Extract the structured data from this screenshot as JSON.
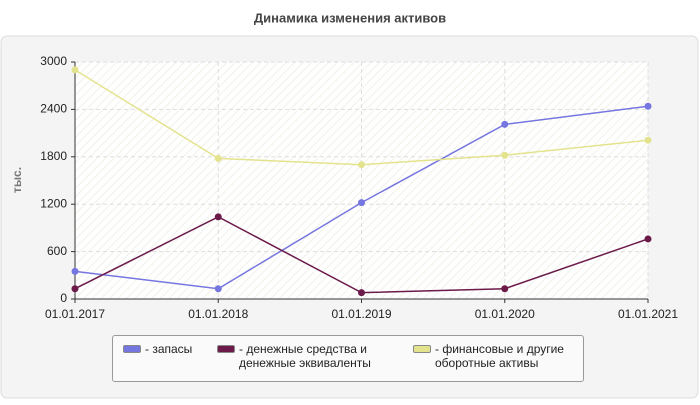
{
  "chart_data": {
    "type": "line",
    "title": "Динамика изменения активов",
    "y_label": "тыс.",
    "categories": [
      "01.01.2017",
      "01.01.2018",
      "01.01.2019",
      "01.01.2020",
      "01.01.2021"
    ],
    "series": [
      {
        "name": "- запасы",
        "color": "#7676e0",
        "values": [
          350,
          130,
          1220,
          2210,
          2440
        ]
      },
      {
        "name": "- денежные средства и денежные эквиваленты",
        "color": "#6b1a4a",
        "values": [
          130,
          1040,
          80,
          130,
          760
        ]
      },
      {
        "name": "- финансовые и другие оборотные активы",
        "color": "#e3e38e",
        "values": [
          2900,
          1780,
          1700,
          1820,
          2010
        ]
      }
    ],
    "ylim": [
      0,
      3000
    ],
    "yticks": [
      0,
      600,
      1200,
      1800,
      2400,
      3000
    ],
    "grid": true
  }
}
